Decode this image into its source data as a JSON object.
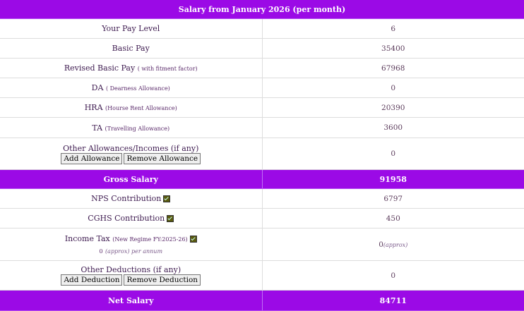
{
  "title": "Salary from January 2026 (per month)",
  "rows": [
    {
      "label": "Your Pay Level",
      "note": "",
      "value": "6"
    },
    {
      "label": "Basic Pay",
      "note": "",
      "value": "35400"
    },
    {
      "label": "Revised Basic Pay",
      "note": "( with fitment factor)",
      "value": "67968"
    },
    {
      "label": "DA",
      "note": "( Dearness Allowance)",
      "value": "0"
    },
    {
      "label": "HRA",
      "note": "(Hourse Rent Allowance)",
      "value": "20390"
    },
    {
      "label": "TA",
      "note": "(Travelling Allowance)",
      "value": "3600"
    }
  ],
  "other_allowances": {
    "label": "Other Allowances/Incomes (if any)",
    "add": "Add Allowance",
    "remove": "Remove Allowance",
    "value": "0"
  },
  "gross": {
    "label": "Gross Salary",
    "value": "91958"
  },
  "nps": {
    "label": "NPS Contribution",
    "value": "6797",
    "checked": true
  },
  "cghs": {
    "label": "CGHS Contribution",
    "value": "450",
    "checked": true
  },
  "income_tax": {
    "label": "Income Tax",
    "note": "(New Regime FY:2025-26)",
    "annual_value": "0",
    "annual_note": "(approx) per annum",
    "value": "0",
    "value_note": "(approx)",
    "checked": true
  },
  "other_deductions": {
    "label": "Other Deductions (if any)",
    "add": "Add Deduction",
    "remove": "Remove Deduction",
    "value": "0"
  },
  "net": {
    "label": "Net Salary",
    "value": "84711"
  },
  "colors": {
    "header": "#9b0ae6"
  }
}
